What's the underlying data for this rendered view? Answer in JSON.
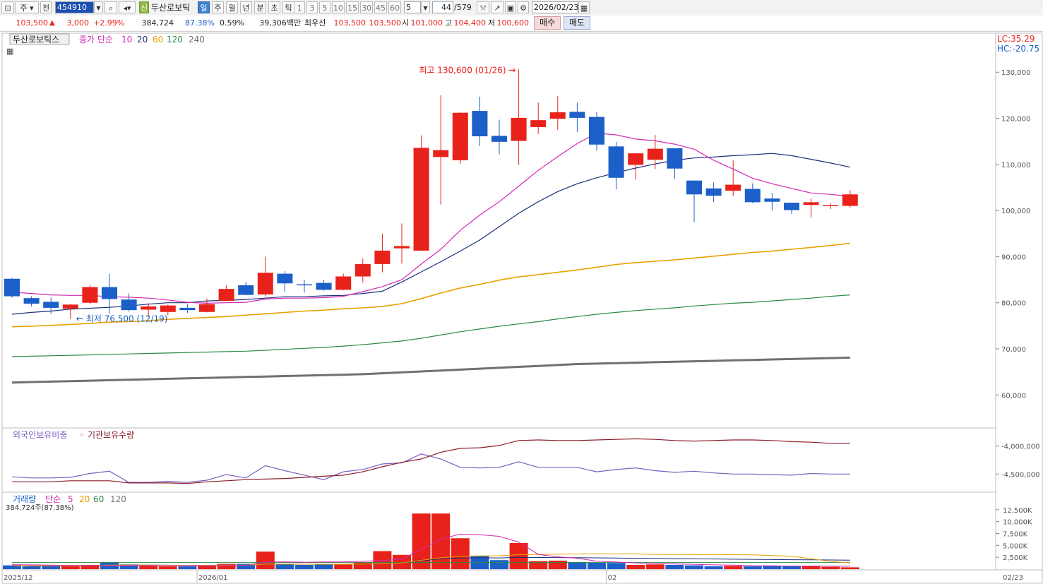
{
  "toolbar": {
    "market": "주",
    "prev_label": "전",
    "code": "454910",
    "stock_type_badge": "신",
    "stock_name": "두산로보틱",
    "periods": [
      "일",
      "주",
      "월",
      "년",
      "분",
      "초",
      "틱"
    ],
    "active_period": "일",
    "intervals": [
      "1",
      "3",
      "5",
      "10",
      "15",
      "30",
      "45",
      "60"
    ],
    "interval_value": "5",
    "count_value": "44",
    "count_total": "/579",
    "date": "2026/02/23"
  },
  "quote": {
    "price": "103,500",
    "direction_symbol": "▲",
    "change": "3,000",
    "change_pct": "+2.99%",
    "volume": "384,724",
    "volume_ratio": "87.38%",
    "turnover": "0.59%",
    "amount": "39,306백만",
    "best_label": "최우선",
    "best_ask": "103,500",
    "best_bid": "103,500",
    "open_label": "시",
    "open": "101,000",
    "high_label": "고",
    "high": "104,400",
    "low_label": "저",
    "low": "100,600",
    "buy_label": "매수",
    "sell_label": "매도"
  },
  "colors": {
    "up": "#e8221a",
    "down": "#1c5fc9",
    "ma10": "#d327b3",
    "ma20": "#1b2f79",
    "ma60": "#e8a100",
    "ma120": "#2b8a45",
    "ma240": "#707070",
    "foreign": "#7a5fc2",
    "inst": "#8b1c2b"
  },
  "chart_data": [
    {
      "type": "candlestick",
      "legend": {
        "name": "두산로보틱스",
        "prefix": "종가 단순",
        "periods": [
          "10",
          "20",
          "60",
          "120",
          "240"
        ]
      },
      "corner": {
        "lc": "LC:35.29",
        "hc": "HC:-20.75"
      },
      "ylim": [
        53000,
        138000
      ],
      "yticks": [
        60000,
        70000,
        80000,
        90000,
        100000,
        110000,
        120000,
        130000
      ],
      "ytick_labels": [
        "60,000",
        "70,000",
        "80,000",
        "90,000",
        "100,000",
        "110,000",
        "120,000",
        "130,000"
      ],
      "x_axis_labels": [
        {
          "label": "2025/12",
          "index": 0
        },
        {
          "label": "2026/01",
          "index": 10
        },
        {
          "label": "02",
          "index": 31
        },
        {
          "label": "02/23",
          "index": 43
        }
      ],
      "annotations": {
        "max_text": "최고 130,600 (01/26)",
        "max_index": 26,
        "max_value": 130600,
        "min_text": "최저 76,500 (12/19)",
        "min_index": 3,
        "min_value": 76500
      },
      "candles": [
        [
          85200,
          85400,
          81100,
          81400
        ],
        [
          81000,
          81400,
          79200,
          79800
        ],
        [
          80200,
          81200,
          77600,
          78900
        ],
        [
          78700,
          79700,
          76500,
          79600
        ],
        [
          80000,
          83900,
          79700,
          83400
        ],
        [
          83400,
          86300,
          77600,
          80800
        ],
        [
          80700,
          82000,
          78100,
          78400
        ],
        [
          78500,
          79900,
          76900,
          79200
        ],
        [
          78000,
          79600,
          77300,
          79400
        ],
        [
          78900,
          79700,
          77800,
          78400
        ],
        [
          78000,
          80900,
          77900,
          79700
        ],
        [
          80400,
          83800,
          80300,
          83000
        ],
        [
          83800,
          84500,
          81600,
          81700
        ],
        [
          81800,
          90000,
          81300,
          86500
        ],
        [
          86300,
          86900,
          82300,
          84200
        ],
        [
          84000,
          85000,
          82200,
          83800
        ],
        [
          84300,
          85000,
          82600,
          82800
        ],
        [
          82800,
          86300,
          82700,
          85700
        ],
        [
          85700,
          89600,
          84400,
          88400
        ],
        [
          88400,
          95000,
          86600,
          91300
        ],
        [
          91800,
          97200,
          88500,
          92300
        ],
        [
          91300,
          116300,
          91300,
          113600
        ],
        [
          111600,
          125000,
          101300,
          113100
        ],
        [
          110900,
          121300,
          110100,
          121200
        ],
        [
          121600,
          124700,
          114000,
          116100
        ],
        [
          116200,
          119700,
          112200,
          114900
        ],
        [
          115100,
          130600,
          109900,
          120100
        ],
        [
          118100,
          123400,
          116600,
          119600
        ],
        [
          119900,
          124800,
          117500,
          121300
        ],
        [
          121400,
          123400,
          117000,
          120100
        ],
        [
          120300,
          121300,
          113000,
          114300
        ],
        [
          113900,
          114900,
          104600,
          107100
        ],
        [
          109900,
          112500,
          106700,
          112400
        ],
        [
          111000,
          116400,
          109000,
          113400
        ],
        [
          113500,
          113500,
          106900,
          109100
        ],
        [
          106500,
          106500,
          97500,
          103500
        ],
        [
          104800,
          106100,
          101800,
          103200
        ],
        [
          104300,
          110900,
          103100,
          105600
        ],
        [
          104700,
          105900,
          101600,
          101800
        ],
        [
          102600,
          103800,
          100000,
          101900
        ],
        [
          101700,
          101700,
          99300,
          100100
        ],
        [
          101200,
          102700,
          98400,
          101800
        ],
        [
          101200,
          101700,
          100300,
          101200
        ],
        [
          101000,
          104400,
          100600,
          103500
        ]
      ],
      "ma10": [
        82300,
        82000,
        81700,
        81600,
        81600,
        81300,
        81200,
        81000,
        80600,
        80100,
        79900,
        80000,
        80100,
        80800,
        81000,
        81000,
        81100,
        81400,
        82400,
        83500,
        85000,
        88400,
        91600,
        95700,
        99000,
        101900,
        105300,
        108700,
        111700,
        114500,
        116800,
        116400,
        115500,
        115100,
        114400,
        113300,
        110900,
        109000,
        107000,
        105800,
        104800,
        103800,
        103500,
        103100
      ],
      "ma20": [
        77500,
        77900,
        78200,
        78600,
        78800,
        79000,
        79300,
        79700,
        80000,
        80000,
        80400,
        80500,
        80700,
        81000,
        81300,
        81300,
        81500,
        81600,
        82000,
        82500,
        84500,
        86700,
        88900,
        91200,
        93600,
        96500,
        99400,
        101900,
        104100,
        105800,
        107100,
        108200,
        109200,
        110100,
        110900,
        111400,
        111600,
        111900,
        112100,
        112400,
        111900,
        111100,
        110300,
        109400
      ],
      "ma60": [
        74800,
        74900,
        75100,
        75300,
        75500,
        75800,
        75900,
        76100,
        76400,
        76600,
        76800,
        77000,
        77300,
        77600,
        77900,
        78200,
        78400,
        78700,
        78900,
        79200,
        79800,
        80900,
        82100,
        83200,
        84000,
        84900,
        85600,
        86100,
        86600,
        87100,
        87700,
        88300,
        88700,
        89000,
        89300,
        89700,
        90100,
        90500,
        90900,
        91200,
        91600,
        92000,
        92400,
        92900
      ],
      "ma120": [
        68300,
        68400,
        68500,
        68600,
        68700,
        68800,
        68900,
        69000,
        69100,
        69200,
        69300,
        69400,
        69500,
        69700,
        69900,
        70100,
        70300,
        70600,
        70900,
        71300,
        71700,
        72300,
        73000,
        73700,
        74300,
        74900,
        75400,
        75900,
        76500,
        77000,
        77500,
        77900,
        78300,
        78600,
        78900,
        79300,
        79600,
        79900,
        80100,
        80400,
        80700,
        81000,
        81400,
        81700
      ],
      "ma240": [
        62700,
        62800,
        62900,
        63000,
        63100,
        63200,
        63300,
        63400,
        63500,
        63600,
        63700,
        63800,
        63900,
        64000,
        64100,
        64200,
        64300,
        64400,
        64500,
        64700,
        64900,
        65100,
        65300,
        65500,
        65700,
        65900,
        66100,
        66300,
        66500,
        66700,
        66800,
        66900,
        67000,
        67100,
        67200,
        67300,
        67400,
        67500,
        67600,
        67700,
        67800,
        67900,
        68000,
        68100
      ]
    },
    {
      "type": "line",
      "series_names": [
        "외국인보유비중",
        "기관보유수량"
      ],
      "ylim": [
        -4800000,
        -3700000
      ],
      "yticks": [
        -4000000,
        -4500000
      ],
      "ytick_labels": [
        "-4,000,000",
        "-4,500,000"
      ],
      "foreign": [
        -4550000,
        -4570000,
        -4570000,
        -4560000,
        -4490000,
        -4450000,
        -4650000,
        -4650000,
        -4630000,
        -4650000,
        -4610000,
        -4510000,
        -4570000,
        -4350000,
        -4440000,
        -4520000,
        -4600000,
        -4460000,
        -4420000,
        -4320000,
        -4300000,
        -4140000,
        -4230000,
        -4380000,
        -4390000,
        -4380000,
        -4280000,
        -4380000,
        -4380000,
        -4380000,
        -4460000,
        -4420000,
        -4390000,
        -4440000,
        -4470000,
        -4450000,
        -4480000,
        -4500000,
        -4500000,
        -4510000,
        -4520000,
        -4490000,
        -4500000,
        -4500000
      ],
      "inst": [
        -4640000,
        -4640000,
        -4640000,
        -4620000,
        -4620000,
        -4620000,
        -4660000,
        -4660000,
        -4660000,
        -4670000,
        -4640000,
        -4620000,
        -4600000,
        -4590000,
        -4580000,
        -4560000,
        -4540000,
        -4520000,
        -4460000,
        -4370000,
        -4290000,
        -4230000,
        -4110000,
        -4040000,
        -4030000,
        -3990000,
        -3900000,
        -3890000,
        -3900000,
        -3900000,
        -3890000,
        -3880000,
        -3870000,
        -3880000,
        -3900000,
        -3910000,
        -3900000,
        -3890000,
        -3890000,
        -3900000,
        -3920000,
        -3930000,
        -3950000,
        -3950000
      ]
    },
    {
      "type": "bar",
      "legend": {
        "prefix": "거래량",
        "label": "단순",
        "periods": [
          "5",
          "20",
          "60",
          "120"
        ]
      },
      "sub_label": "384,724주(87.38%)",
      "ylim": [
        0,
        15000
      ],
      "yticks": [
        2500,
        5000,
        7500,
        10000,
        12500
      ],
      "ytick_labels": [
        "2,500K",
        "5,000K",
        "7,500K",
        "10,000K",
        "12,500K"
      ],
      "volume_k": [
        800,
        600,
        700,
        650,
        900,
        1500,
        1000,
        700,
        600,
        600,
        800,
        1100,
        1100,
        3700,
        1000,
        900,
        1000,
        1000,
        1500,
        3800,
        3000,
        11700,
        11700,
        6500,
        2800,
        1900,
        5500,
        1700,
        1800,
        1500,
        1400,
        1300,
        900,
        1000,
        900,
        800,
        600,
        700,
        600,
        700,
        600,
        700,
        500,
        390
      ],
      "ma5_k": [
        950,
        900,
        850,
        800,
        780,
        750,
        760,
        760,
        760,
        750,
        700,
        760,
        820,
        1480,
        1540,
        1460,
        1520,
        1520,
        1680,
        1840,
        2060,
        4200,
        6340,
        7360,
        7240,
        6900,
        5700,
        3100,
        2600,
        2300,
        1700,
        1500,
        1300,
        1200,
        1100,
        1000,
        900,
        850,
        750,
        700,
        650,
        650,
        640,
        620
      ]
    }
  ]
}
